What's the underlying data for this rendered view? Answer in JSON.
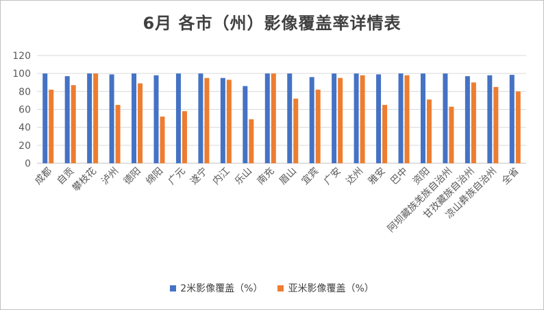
{
  "chart_data": {
    "type": "bar",
    "title": "6月 各市（州）影像覆盖率详情表",
    "categories": [
      "成都",
      "自贡",
      "攀枝花",
      "泸州",
      "德阳",
      "绵阳",
      "广元",
      "遂宁",
      "内江",
      "乐山",
      "南充",
      "眉山",
      "宜宾",
      "广安",
      "达州",
      "雅安",
      "巴中",
      "资阳",
      "阿坝藏族羌族自治州",
      "甘孜藏族自治州",
      "凉山彝族自治州",
      "全省"
    ],
    "series": [
      {
        "name": "2米影像覆盖（%）",
        "color": "#4472C4",
        "values": [
          100,
          97,
          100,
          99,
          100,
          98,
          100,
          100,
          95,
          86,
          100,
          100,
          96,
          100,
          100,
          99,
          100,
          100,
          100,
          97,
          98,
          98.5
        ]
      },
      {
        "name": "亚米影像覆盖（%）",
        "color": "#ED7D31",
        "values": [
          82,
          87,
          100,
          65,
          89,
          52,
          58,
          95,
          93,
          49,
          100,
          72,
          82,
          95,
          98,
          65,
          98,
          71,
          63,
          90,
          85,
          80
        ]
      }
    ],
    "ylim": [
      0,
      120
    ],
    "yticks": [
      0,
      20,
      40,
      60,
      80,
      100,
      120
    ],
    "grid": true,
    "legend_position": "bottom"
  }
}
